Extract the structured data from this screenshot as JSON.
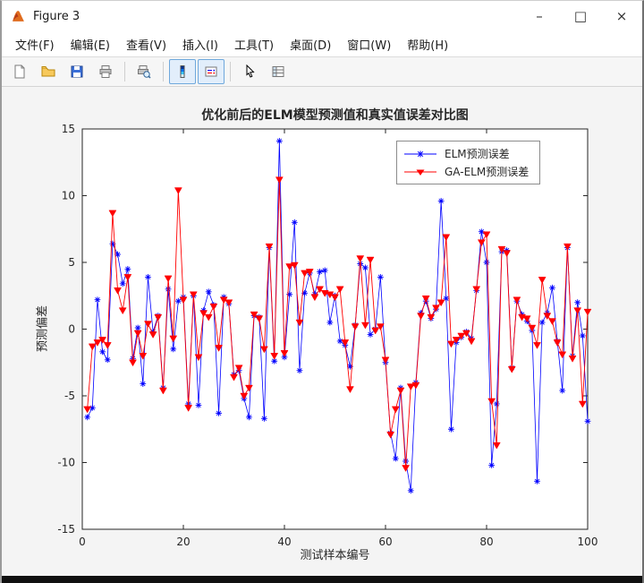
{
  "window": {
    "title": "Figure 3"
  },
  "titlebar": {
    "minimize_glyph": "–",
    "maximize_glyph": "□",
    "close_glyph": "×"
  },
  "menu": {
    "items": [
      {
        "label": "文件(F)"
      },
      {
        "label": "编辑(E)"
      },
      {
        "label": "查看(V)"
      },
      {
        "label": "插入(I)"
      },
      {
        "label": "工具(T)"
      },
      {
        "label": "桌面(D)"
      },
      {
        "label": "窗口(W)"
      },
      {
        "label": "帮助(H)"
      }
    ]
  },
  "toolbar": {
    "buttons": [
      {
        "icon": "new-figure-icon",
        "active": false
      },
      {
        "icon": "open-file-icon",
        "active": false
      },
      {
        "icon": "save-icon",
        "active": false
      },
      {
        "icon": "print-icon",
        "active": false
      },
      {
        "icon": "print-preview-icon",
        "active": false
      },
      {
        "icon": "insert-colorbar-icon",
        "active": true
      },
      {
        "icon": "insert-legend-icon",
        "active": true
      },
      {
        "icon": "edit-plot-icon",
        "active": false
      },
      {
        "icon": "property-inspector-icon",
        "active": false
      }
    ]
  },
  "chart_data": {
    "type": "line",
    "title": "优化前后的ELM模型预测值和真实值误差对比图",
    "xlabel": "测试样本编号",
    "ylabel": "预测偏差",
    "xlim": [
      0,
      100
    ],
    "ylim": [
      -15,
      15
    ],
    "xticks": [
      0,
      20,
      40,
      60,
      80,
      100
    ],
    "yticks": [
      -15,
      -10,
      -5,
      0,
      5,
      10,
      15
    ],
    "x_start": 1,
    "grid": false,
    "legend_position": "top-right",
    "series": [
      {
        "name": "ELM预测误差",
        "color": "#0000ff",
        "marker": "asterisk",
        "values": [
          -6.6,
          -5.9,
          2.2,
          -1.7,
          -2.3,
          6.4,
          5.6,
          3.4,
          4.5,
          -2.2,
          0.1,
          -4.1,
          3.9,
          -0.2,
          1.0,
          -4.4,
          3.0,
          -1.5,
          2.1,
          2.4,
          -5.6,
          2.5,
          -5.7,
          1.4,
          2.8,
          1.8,
          -6.3,
          2.4,
          1.9,
          -3.4,
          -3.1,
          -5.2,
          -6.6,
          1.0,
          0.9,
          -6.7,
          6.1,
          -2.4,
          14.1,
          -2.1,
          2.6,
          8.0,
          -3.1,
          2.7,
          4.2,
          2.6,
          4.3,
          4.4,
          0.5,
          2.5,
          -0.9,
          -1.2,
          -2.8,
          0.3,
          4.9,
          4.6,
          -0.4,
          0.0,
          3.9,
          -2.5,
          -7.8,
          -9.7,
          -4.4,
          -9.9,
          -12.1,
          -4.0,
          1.2,
          2.1,
          0.8,
          1.5,
          9.6,
          2.3,
          -7.5,
          -1.0,
          -0.6,
          -0.2,
          -0.7,
          2.9,
          7.3,
          5.0,
          -10.2,
          -5.6,
          5.8,
          5.9,
          -2.9,
          2.1,
          1.1,
          0.6,
          -0.1,
          -11.4,
          0.5,
          1.2,
          3.1,
          -0.9,
          -4.6,
          6.1,
          -2.0,
          2.0,
          -0.5,
          -6.9
        ]
      },
      {
        "name": "GA-ELM预测误差",
        "color": "#ff0000",
        "marker": "triangle-down",
        "values": [
          -6.0,
          -1.3,
          -1.0,
          -0.8,
          -1.2,
          8.7,
          2.9,
          1.4,
          3.9,
          -2.5,
          -0.3,
          -2.0,
          0.4,
          -0.4,
          0.9,
          -4.6,
          3.8,
          -0.7,
          10.4,
          2.2,
          -5.9,
          2.6,
          -2.1,
          1.2,
          0.9,
          1.7,
          -1.4,
          2.2,
          2.0,
          -3.6,
          -2.9,
          -5.0,
          -4.4,
          1.1,
          0.8,
          -1.5,
          6.2,
          -2.0,
          11.2,
          -1.8,
          4.7,
          4.8,
          0.5,
          4.2,
          4.3,
          2.4,
          3.0,
          2.7,
          2.6,
          2.4,
          3.0,
          -1.0,
          -4.5,
          0.2,
          5.3,
          0.3,
          5.2,
          -0.1,
          0.2,
          -2.3,
          -7.9,
          -6.0,
          -4.6,
          -10.4,
          -4.3,
          -4.2,
          1.0,
          2.3,
          0.9,
          1.6,
          2.0,
          6.9,
          -1.1,
          -0.8,
          -0.5,
          -0.3,
          -0.9,
          3.0,
          6.5,
          7.1,
          -5.4,
          -8.7,
          6.0,
          5.7,
          -3.0,
          2.2,
          0.9,
          0.8,
          0.1,
          -1.2,
          3.7,
          1.0,
          0.6,
          -1.0,
          -1.9,
          6.2,
          -2.2,
          1.4,
          -5.6,
          1.3
        ]
      }
    ]
  }
}
